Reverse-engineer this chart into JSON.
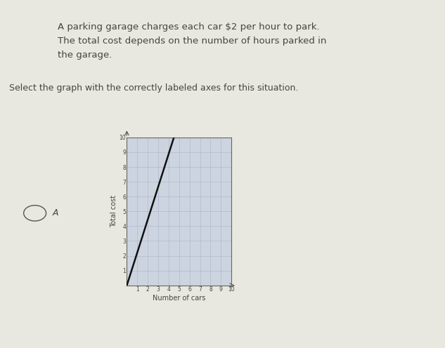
{
  "text_line1": "A parking garage charges each car $2 per hour to park.",
  "text_line2": "The total cost depends on the number of hours parked in",
  "text_line3": "the garage.",
  "select_text": "Select the graph with the correctly labeled axes for this situation.",
  "option_label": "A",
  "xlabel": "Number of cars",
  "ylabel": "Total cost",
  "xlim": [
    0,
    10
  ],
  "ylim": [
    0,
    10
  ],
  "xticks": [
    1,
    2,
    3,
    4,
    5,
    6,
    7,
    8,
    9,
    10
  ],
  "yticks": [
    1,
    2,
    3,
    4,
    5,
    6,
    7,
    8,
    9,
    10
  ],
  "line_x": [
    0,
    4.5
  ],
  "line_y": [
    0,
    10
  ],
  "bg_color": "#e8e8e0",
  "graph_bg": "#ccd4e0",
  "grid_color": "#aab4c8",
  "line_color": "#111111",
  "text_color": "#444444",
  "font_size_main": 9.5,
  "font_size_select": 9,
  "font_size_tick": 5.5,
  "font_size_label": 7
}
